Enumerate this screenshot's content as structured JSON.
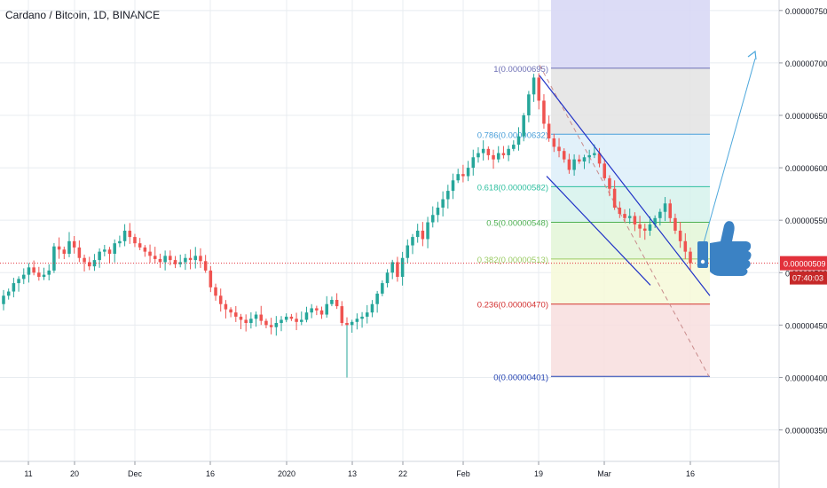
{
  "symbol_title": "Cardano / Bitcoin, 1D, BINANCE",
  "colors": {
    "up": "#26a69a",
    "down": "#ef5350",
    "grid": "#e8ecf0",
    "axis_text": "#131722",
    "price_line": "#e2313b",
    "time_badge": "#c62828",
    "channel": "#2133c7",
    "arrow": "#4ea8dc",
    "thumb": "#3b82c4"
  },
  "chart_data": {
    "type": "candlestick",
    "y_axis": {
      "ticks": [
        "0.00000750",
        "0.00000700",
        "0.00000650",
        "0.00000600",
        "0.00000550",
        "0.00000500",
        "0.00000450",
        "0.00000400",
        "0.00000350"
      ],
      "range": [
        3.2e-06,
        7.6e-06
      ]
    },
    "x_axis": {
      "ticks": [
        "11",
        "20",
        "Dec",
        "16",
        "2020",
        "13",
        "22",
        "Feb",
        "19",
        "Mar",
        "16"
      ]
    },
    "last_price": {
      "value": 5.09e-06,
      "label": "0.00000509"
    },
    "countdown": "07:40:03",
    "fibonacci": {
      "levels": [
        {
          "ratio": "1",
          "label": "1(0.00000695)",
          "price": 6.95e-06,
          "fill": "#e3e3e3",
          "line": "#6d6fb5"
        },
        {
          "ratio": "0.786",
          "label": "0.786(0.00000632)",
          "price": 6.32e-06,
          "fill": "#ddeef9",
          "line": "#4a9fd9"
        },
        {
          "ratio": "0.618",
          "label": "0.618(0.00000582)",
          "price": 5.82e-06,
          "fill": "#d6f2ec",
          "line": "#2ebf9f"
        },
        {
          "ratio": "0.5",
          "label": "0.5(0.00000548)",
          "price": 5.48e-06,
          "fill": "#e3f6d7",
          "line": "#4caf50"
        },
        {
          "ratio": "0.382",
          "label": "0.382(0.00000513)",
          "price": 5.13e-06,
          "fill": "#f6f9d8",
          "line": "#9ccc65"
        },
        {
          "ratio": "0.236",
          "label": "0.236(0.00000470)",
          "price": 4.7e-06,
          "fill": "#f8dede",
          "line": "#d32f2f"
        },
        {
          "ratio": "0",
          "label": "0(0.00000401)",
          "price": 4.01e-06,
          "fill": null,
          "line": "#1f3fb0"
        }
      ],
      "extension_fill": "#d8d8f5"
    },
    "series": [
      {
        "name": "ADA/BTC",
        "close": [
          4.78,
          4.82,
          4.9,
          4.94,
          4.98,
          5.05,
          5.0,
          4.96,
          4.98,
          5.02,
          5.25,
          5.22,
          5.18,
          5.3,
          5.24,
          5.14,
          5.1,
          5.06,
          5.12,
          5.2,
          5.22,
          5.18,
          5.28,
          5.3,
          5.4,
          5.34,
          5.28,
          5.24,
          5.2,
          5.16,
          5.13,
          5.1,
          5.16,
          5.12,
          5.08,
          5.1,
          5.14,
          5.12,
          5.16,
          5.11,
          5.02,
          4.86,
          4.78,
          4.7,
          4.65,
          4.62,
          4.58,
          4.55,
          4.52,
          4.56,
          4.6,
          4.54,
          4.5,
          4.48,
          4.52,
          4.55,
          4.58,
          4.56,
          4.53,
          4.55,
          4.62,
          4.66,
          4.64,
          4.6,
          4.7,
          4.74,
          4.68,
          4.52,
          4.5,
          4.53,
          4.56,
          4.58,
          4.62,
          4.7,
          4.8,
          4.9,
          5.0,
          5.1,
          4.96,
          5.14,
          5.26,
          5.34,
          5.4,
          5.32,
          5.48,
          5.55,
          5.62,
          5.7,
          5.78,
          5.88,
          5.94,
          5.92,
          6.0,
          6.1,
          6.14,
          6.18,
          6.12,
          6.08,
          6.14,
          6.12,
          6.18,
          6.22,
          6.3,
          6.5,
          6.7,
          6.86,
          6.64,
          6.42,
          6.28,
          6.2,
          6.16,
          6.08,
          5.98,
          6.08,
          6.06,
          6.1,
          6.12,
          6.14,
          6.04,
          5.9,
          5.8,
          5.62,
          5.56,
          5.52,
          5.54,
          5.46,
          5.42,
          5.4,
          5.46,
          5.52,
          5.58,
          5.66,
          5.52,
          5.4,
          5.3,
          5.2,
          5.09
        ]
      }
    ],
    "annotations": [
      {
        "type": "descending-channel"
      },
      {
        "type": "projection-arrow"
      },
      {
        "type": "thumbs-up"
      }
    ]
  }
}
